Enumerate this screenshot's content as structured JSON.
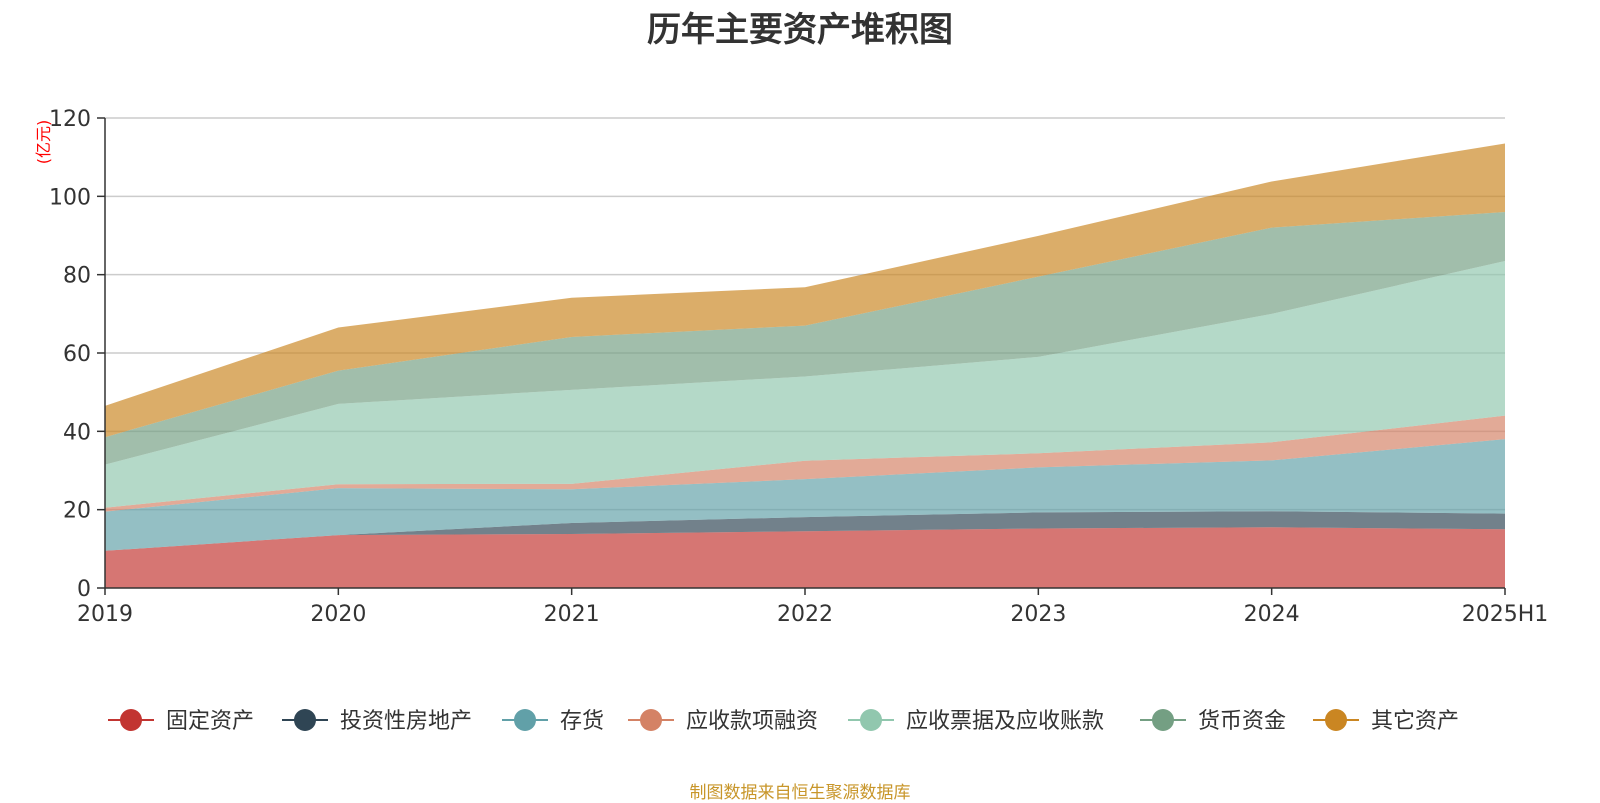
{
  "title": "历年主要资产堆积图",
  "source": "制图数据来自恒生聚源数据库",
  "chart_data": {
    "type": "area",
    "stacked": true,
    "title": "历年主要资产堆积图",
    "ylabel": "(亿元)",
    "xlabel": "",
    "ylim": [
      0,
      120
    ],
    "yticks": [
      0,
      20,
      40,
      60,
      80,
      100,
      120
    ],
    "grid": true,
    "legend_position": "bottom",
    "categories": [
      "2019",
      "2020",
      "2021",
      "2022",
      "2023",
      "2024",
      "2025H1"
    ],
    "series": [
      {
        "name": "固定资产",
        "color": "#c23531",
        "values": [
          9.5,
          13.5,
          13.8,
          14.5,
          15.2,
          15.5,
          15.0
        ]
      },
      {
        "name": "投资性房地产",
        "color": "#2f4554",
        "values": [
          0.0,
          0.0,
          2.8,
          3.6,
          4.1,
          4.1,
          4.0
        ]
      },
      {
        "name": "存货",
        "color": "#61a0a8",
        "values": [
          10.0,
          12.0,
          8.6,
          9.7,
          11.5,
          13.0,
          19.0
        ]
      },
      {
        "name": "应收款项融资",
        "color": "#d48265",
        "values": [
          1.0,
          1.0,
          1.4,
          4.7,
          3.6,
          4.6,
          6.0
        ]
      },
      {
        "name": "应收票据及应收账款",
        "color": "#91c7ae",
        "values": [
          11.0,
          20.5,
          24.0,
          21.5,
          24.6,
          32.8,
          39.5
        ]
      },
      {
        "name": "货币资金",
        "color": "#749f83",
        "values": [
          7.0,
          8.5,
          13.5,
          13.0,
          20.5,
          22.0,
          12.5
        ]
      },
      {
        "name": "其它资产",
        "color": "#ca8622",
        "values": [
          8.0,
          11.0,
          10.0,
          9.8,
          10.4,
          11.8,
          17.5
        ]
      }
    ]
  }
}
